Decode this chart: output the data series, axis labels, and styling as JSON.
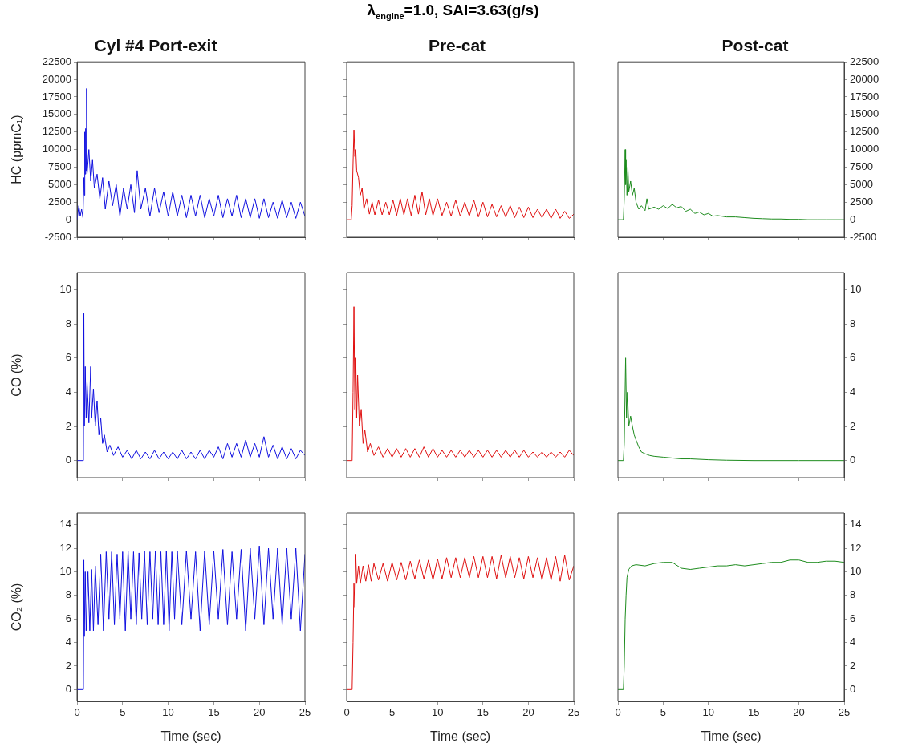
{
  "chart_data": [
    {
      "type": "line",
      "title": "Cyl #4 Port-exit",
      "ylabel": "HC (ppmC₁)",
      "xlim": [
        0,
        25
      ],
      "xticks": [
        0,
        5,
        10,
        15,
        20,
        25
      ],
      "ylim": [
        -2500,
        22500
      ],
      "yticks": [
        -2500,
        0,
        2500,
        5000,
        7500,
        10000,
        12500,
        15000,
        17500,
        20000,
        22500
      ],
      "tick_labels": "y",
      "series": [
        {
          "color": "#1010e0",
          "x": [
            0,
            0.2,
            0.35,
            0.5,
            0.65,
            0.75,
            0.8,
            0.85,
            0.9,
            0.95,
            1.0,
            1.05,
            1.1,
            1.3,
            1.5,
            1.7,
            1.9,
            2.2,
            2.5,
            2.8,
            3.1,
            3.5,
            3.9,
            4.3,
            4.7,
            5.1,
            5.5,
            5.9,
            6.3,
            6.6,
            7.0,
            7.5,
            8.0,
            8.5,
            9.0,
            9.5,
            10,
            10.5,
            11,
            11.5,
            12,
            12.5,
            13,
            13.5,
            14,
            14.5,
            15,
            15.5,
            16,
            16.5,
            17,
            17.5,
            18,
            18.5,
            19,
            19.5,
            20,
            20.5,
            21,
            21.5,
            22,
            22.5,
            23,
            23.5,
            24,
            24.5,
            25
          ],
          "values": [
            0,
            2000,
            500,
            1500,
            300,
            6000,
            3500,
            12500,
            6500,
            13000,
            7000,
            18700,
            6500,
            10000,
            5500,
            8500,
            4500,
            6500,
            3000,
            6000,
            1500,
            5500,
            2000,
            5000,
            500,
            4500,
            1500,
            5000,
            1000,
            7000,
            1500,
            4500,
            500,
            4500,
            1000,
            4000,
            500,
            4000,
            500,
            3500,
            300,
            3500,
            500,
            3500,
            300,
            3000,
            500,
            3500,
            300,
            3000,
            500,
            3500,
            300,
            3000,
            300,
            3000,
            200,
            3000,
            300,
            2500,
            200,
            2800,
            300,
            2500,
            200,
            2500,
            500
          ]
        }
      ]
    },
    {
      "type": "line",
      "title": "λ$_{engine}$=1.0, SAI=3.63(g/s)",
      "subtitle": "Pre-cat",
      "xlim": [
        0,
        25
      ],
      "xticks": [
        0,
        5,
        10,
        15,
        20,
        25
      ],
      "ylim": [
        -2500,
        22500
      ],
      "yticks": [
        -2500,
        0,
        2500,
        5000,
        7500,
        10000,
        12500,
        15000,
        17500,
        20000,
        22500
      ],
      "tick_labels": false,
      "series": [
        {
          "color": "#e01010",
          "x": [
            0,
            0.5,
            0.6,
            0.7,
            0.8,
            0.9,
            1.0,
            1.1,
            1.3,
            1.5,
            1.7,
            1.9,
            2.2,
            2.5,
            2.8,
            3.1,
            3.5,
            3.9,
            4.3,
            4.7,
            5.1,
            5.5,
            5.9,
            6.3,
            6.7,
            7.1,
            7.5,
            7.9,
            8.3,
            8.7,
            9.1,
            9.5,
            10,
            10.5,
            11,
            11.5,
            12,
            12.5,
            13,
            13.5,
            14,
            14.5,
            15,
            15.5,
            16,
            16.5,
            17,
            17.5,
            18,
            18.5,
            19,
            19.5,
            20,
            20.5,
            21,
            21.5,
            22,
            22.5,
            23,
            23.5,
            24,
            24.5,
            25
          ],
          "values": [
            0,
            0,
            2000,
            8000,
            12800,
            9000,
            10000,
            7000,
            6000,
            3500,
            4500,
            1500,
            3000,
            800,
            2500,
            700,
            2800,
            700,
            2500,
            700,
            2800,
            600,
            3000,
            700,
            3000,
            600,
            3500,
            800,
            4000,
            700,
            3000,
            600,
            3000,
            600,
            2500,
            500,
            2800,
            500,
            2500,
            500,
            2800,
            400,
            2500,
            400,
            2200,
            400,
            2000,
            400,
            2000,
            300,
            1800,
            300,
            1800,
            300,
            1500,
            300,
            1500,
            200,
            1500,
            200,
            1200,
            200,
            800
          ]
        }
      ]
    },
    {
      "type": "line",
      "title": "Post-cat",
      "xlim": [
        0,
        25
      ],
      "xticks": [
        0,
        5,
        10,
        15,
        20,
        25
      ],
      "ylim": [
        -2500,
        22500
      ],
      "yticks": [
        -2500,
        0,
        2500,
        5000,
        7500,
        10000,
        12500,
        15000,
        17500,
        20000,
        22500
      ],
      "tick_labels": "y",
      "series": [
        {
          "color": "#1e8c1e",
          "x": [
            0,
            0.6,
            0.7,
            0.8,
            0.85,
            0.9,
            1.0,
            1.1,
            1.2,
            1.4,
            1.6,
            1.8,
            2.0,
            2.3,
            2.6,
            3.0,
            3.2,
            3.4,
            4,
            4.5,
            5,
            5.5,
            6,
            6.5,
            7,
            7.5,
            8,
            8.5,
            9,
            9.5,
            10,
            10.5,
            11,
            12,
            13,
            14,
            15,
            16,
            17,
            18,
            19,
            20,
            21,
            22,
            23,
            24,
            25
          ],
          "values": [
            0,
            0,
            3000,
            10000,
            5000,
            8500,
            3500,
            7500,
            4000,
            5500,
            3500,
            4500,
            2500,
            1500,
            2000,
            1300,
            3000,
            1500,
            1800,
            1500,
            2000,
            1600,
            2200,
            1700,
            1900,
            1200,
            1500,
            900,
            1100,
            700,
            900,
            500,
            600,
            400,
            400,
            300,
            200,
            150,
            100,
            100,
            50,
            50,
            0,
            0,
            0,
            0,
            0
          ]
        }
      ]
    },
    {
      "type": "line",
      "ylabel": "CO (%)",
      "xlim": [
        0,
        25
      ],
      "xticks": [
        0,
        5,
        10,
        15,
        20,
        25
      ],
      "ylim": [
        -1,
        11
      ],
      "yticks": [
        0,
        2,
        4,
        6,
        8,
        10
      ],
      "tick_labels": "y",
      "series": [
        {
          "color": "#1010e0",
          "x": [
            0,
            0.7,
            0.75,
            0.8,
            0.9,
            1.0,
            1.1,
            1.3,
            1.5,
            1.6,
            1.8,
            2.0,
            2.2,
            2.4,
            2.6,
            2.8,
            3,
            3.3,
            3.6,
            4,
            4.5,
            5,
            5.5,
            6,
            6.5,
            7,
            7.5,
            8,
            8.5,
            9,
            9.5,
            10,
            10.5,
            11,
            11.5,
            12,
            12.5,
            13,
            13.5,
            14,
            14.5,
            15,
            15.5,
            16,
            16.5,
            17,
            17.5,
            18,
            18.5,
            19,
            19.5,
            20,
            20.5,
            21,
            21.5,
            22,
            22.5,
            23,
            23.5,
            24,
            24.5,
            25
          ],
          "values": [
            0,
            0,
            8.6,
            2,
            5.5,
            2.5,
            4.6,
            2.2,
            5.5,
            2.5,
            4.2,
            2,
            3.5,
            1.5,
            2.5,
            1,
            1.5,
            0.5,
            0.9,
            0.3,
            0.8,
            0.2,
            0.6,
            0.1,
            0.6,
            0.1,
            0.5,
            0.1,
            0.6,
            0.1,
            0.5,
            0.1,
            0.5,
            0.1,
            0.6,
            0.1,
            0.5,
            0.1,
            0.6,
            0.1,
            0.6,
            0.2,
            0.8,
            0.1,
            1.0,
            0.2,
            1.0,
            0.2,
            1.2,
            0.2,
            1.0,
            0.2,
            1.4,
            0.2,
            0.9,
            0.1,
            0.8,
            0.1,
            0.7,
            0.1,
            0.6,
            0.3
          ]
        }
      ]
    },
    {
      "type": "line",
      "xlim": [
        0,
        25
      ],
      "xticks": [
        0,
        5,
        10,
        15,
        20,
        25
      ],
      "ylim": [
        -1,
        11
      ],
      "yticks": [
        0,
        2,
        4,
        6,
        8,
        10
      ],
      "tick_labels": false,
      "series": [
        {
          "color": "#e01010",
          "x": [
            0,
            0.6,
            0.7,
            0.8,
            0.9,
            1.0,
            1.1,
            1.2,
            1.4,
            1.6,
            1.8,
            2,
            2.3,
            2.6,
            3,
            3.5,
            4,
            4.5,
            5,
            5.5,
            6,
            6.5,
            7,
            7.5,
            8,
            8.5,
            9,
            9.5,
            10,
            10.5,
            11,
            11.5,
            12,
            12.5,
            13,
            13.5,
            14,
            14.5,
            15,
            15.5,
            16,
            16.5,
            17,
            17.5,
            18,
            18.5,
            19,
            19.5,
            20,
            20.5,
            21,
            21.5,
            22,
            22.5,
            23,
            23.5,
            24,
            24.5,
            25
          ],
          "values": [
            0,
            0,
            4,
            9,
            3,
            6,
            2.5,
            5,
            2,
            3,
            1,
            1.8,
            0.5,
            1,
            0.3,
            0.8,
            0.2,
            0.7,
            0.2,
            0.7,
            0.2,
            0.7,
            0.2,
            0.7,
            0.2,
            0.8,
            0.2,
            0.7,
            0.2,
            0.6,
            0.2,
            0.6,
            0.2,
            0.6,
            0.2,
            0.6,
            0.2,
            0.6,
            0.2,
            0.6,
            0.2,
            0.6,
            0.2,
            0.6,
            0.2,
            0.6,
            0.2,
            0.6,
            0.2,
            0.5,
            0.2,
            0.5,
            0.2,
            0.5,
            0.2,
            0.5,
            0.2,
            0.6,
            0.3
          ]
        }
      ]
    },
    {
      "type": "line",
      "xlim": [
        0,
        25
      ],
      "xticks": [
        0,
        5,
        10,
        15,
        20,
        25
      ],
      "ylim": [
        -1,
        11
      ],
      "yticks": [
        0,
        2,
        4,
        6,
        8,
        10
      ],
      "tick_labels": "y",
      "series": [
        {
          "color": "#1e8c1e",
          "x": [
            0,
            0.6,
            0.7,
            0.85,
            0.95,
            1.05,
            1.2,
            1.4,
            1.6,
            1.8,
            2,
            2.3,
            2.6,
            3,
            3.5,
            4,
            5,
            6,
            7,
            8,
            10,
            12,
            15,
            20,
            25
          ],
          "values": [
            0,
            0,
            1,
            6,
            2.5,
            4,
            2,
            2.6,
            2,
            1.5,
            1.2,
            0.8,
            0.5,
            0.4,
            0.3,
            0.25,
            0.2,
            0.15,
            0.1,
            0.1,
            0.05,
            0.02,
            0,
            0,
            0
          ]
        }
      ]
    },
    {
      "type": "line",
      "ylabel": "CO₂ (%)",
      "xlabel": "Time (sec)",
      "xlim": [
        0,
        25
      ],
      "xticks": [
        0,
        5,
        10,
        15,
        20,
        25
      ],
      "ylim": [
        -1,
        15
      ],
      "yticks": [
        0,
        2,
        4,
        6,
        8,
        10,
        12,
        14
      ],
      "tick_labels": "xy",
      "series": [
        {
          "color": "#1010e0",
          "x": [
            0,
            0.7,
            0.75,
            0.8,
            0.9,
            1.0,
            1.2,
            1.4,
            1.6,
            1.8,
            2.0,
            2.3,
            2.6,
            2.9,
            3.2,
            3.5,
            3.8,
            4.1,
            4.4,
            4.7,
            5.0,
            5.3,
            5.6,
            5.9,
            6.2,
            6.5,
            6.8,
            7.1,
            7.4,
            7.7,
            8,
            8.3,
            8.6,
            8.9,
            9.2,
            9.5,
            9.8,
            10.1,
            10.4,
            10.7,
            11,
            11.5,
            12,
            12.5,
            13,
            13.5,
            14,
            14.5,
            15,
            15.5,
            16,
            16.5,
            17,
            17.5,
            18,
            18.5,
            19,
            19.5,
            20,
            20.5,
            21,
            21.5,
            22,
            22.5,
            23,
            23.5,
            24,
            24.5,
            25
          ],
          "values": [
            0,
            0,
            11,
            4.5,
            10,
            5,
            10,
            5,
            10.2,
            5,
            10.5,
            5.5,
            11.5,
            5,
            11.7,
            6,
            11.7,
            5.5,
            11.5,
            6,
            11.7,
            5,
            11.8,
            6,
            11.7,
            5.5,
            11.6,
            6,
            11.8,
            5.5,
            11.7,
            6,
            11.8,
            5.5,
            11.7,
            5.5,
            11.8,
            5,
            11.7,
            6,
            11.8,
            5.5,
            11.8,
            6,
            11.7,
            5,
            11.8,
            5.5,
            11.8,
            6,
            11.9,
            5.5,
            11.7,
            6,
            11.9,
            5,
            12,
            6,
            12.2,
            5.5,
            12,
            6,
            12,
            5.5,
            12,
            6,
            12,
            5,
            11.5
          ]
        }
      ]
    },
    {
      "type": "line",
      "xlabel": "Time (sec)",
      "xlim": [
        0,
        25
      ],
      "xticks": [
        0,
        5,
        10,
        15,
        20,
        25
      ],
      "ylim": [
        -1,
        15
      ],
      "yticks": [
        0,
        2,
        4,
        6,
        8,
        10,
        12,
        14
      ],
      "tick_labels": "x",
      "series": [
        {
          "color": "#e01010",
          "x": [
            0,
            0.6,
            0.7,
            0.8,
            0.9,
            1.0,
            1.1,
            1.3,
            1.5,
            1.8,
            2.1,
            2.4,
            2.7,
            3,
            3.5,
            4,
            4.5,
            5,
            5.5,
            6,
            6.5,
            7,
            7.5,
            8,
            8.5,
            9,
            9.5,
            10,
            10.5,
            11,
            11.5,
            12,
            12.5,
            13,
            13.5,
            14,
            14.5,
            15,
            15.5,
            16,
            16.5,
            17,
            17.5,
            18,
            18.5,
            19,
            19.5,
            20,
            20.5,
            21,
            21.5,
            22,
            22.5,
            23,
            23.5,
            24,
            24.5,
            25
          ],
          "values": [
            0,
            0,
            4,
            9,
            7,
            11.5,
            9,
            10.5,
            9,
            10.5,
            9.2,
            10.6,
            9.2,
            10.7,
            9.3,
            10.7,
            9.2,
            10.8,
            9.3,
            10.8,
            9.3,
            10.9,
            9.4,
            11,
            9.4,
            11,
            9.3,
            11.1,
            9.4,
            11.2,
            9.5,
            11.2,
            9.5,
            11.2,
            9.5,
            11.3,
            9.5,
            11.3,
            9.5,
            11.3,
            9.4,
            11.4,
            9.5,
            11.3,
            9.5,
            11.2,
            9.4,
            11.3,
            9.5,
            11.2,
            9.3,
            11.2,
            9.3,
            11.3,
            9.2,
            11.4,
            9.3,
            10.5
          ]
        }
      ]
    },
    {
      "type": "line",
      "xlabel": "Time (sec)",
      "xlim": [
        0,
        25
      ],
      "xticks": [
        0,
        5,
        10,
        15,
        20,
        25
      ],
      "ylim": [
        -1,
        15
      ],
      "yticks": [
        0,
        2,
        4,
        6,
        8,
        10,
        12,
        14
      ],
      "tick_labels": "xy",
      "series": [
        {
          "color": "#1e8c1e",
          "x": [
            0,
            0.6,
            0.7,
            0.8,
            0.9,
            1.0,
            1.2,
            1.5,
            2,
            3,
            4,
            5,
            6,
            7,
            8,
            9,
            10,
            11,
            12,
            13,
            14,
            15,
            16,
            17,
            18,
            19,
            20,
            21,
            22,
            23,
            24,
            25
          ],
          "values": [
            0,
            0,
            2,
            6,
            8,
            9.5,
            10.2,
            10.5,
            10.6,
            10.5,
            10.7,
            10.8,
            10.8,
            10.3,
            10.2,
            10.3,
            10.4,
            10.5,
            10.5,
            10.6,
            10.5,
            10.6,
            10.7,
            10.8,
            10.8,
            11,
            11,
            10.8,
            10.8,
            10.9,
            10.9,
            10.8
          ]
        }
      ]
    }
  ]
}
